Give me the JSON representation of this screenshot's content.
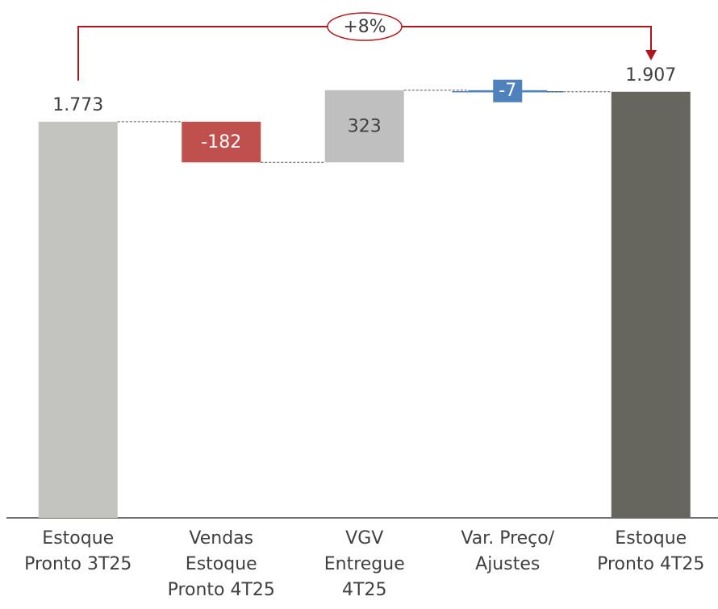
{
  "chart_data": {
    "type": "waterfall",
    "categories": [
      "Estoque\nPronto 3T25",
      "Vendas\nEstoque\nPronto 4T25",
      "VGV\nEntregue\n4T25",
      "Var. Preço/\nAjustes",
      "Estoque\nPronto 4T25"
    ],
    "values": [
      1773,
      -182,
      323,
      -7,
      1907
    ],
    "value_labels": [
      "1.773",
      "-182",
      "323",
      "-7",
      "1.907"
    ],
    "totals": [
      true,
      false,
      false,
      false,
      true
    ],
    "colors": [
      "#c3c3c0",
      "#c0504d",
      "#bfbfbf",
      "#4f81bd",
      "#66665e"
    ],
    "ylim": [
      0,
      2000
    ],
    "annotation": "+8%"
  }
}
